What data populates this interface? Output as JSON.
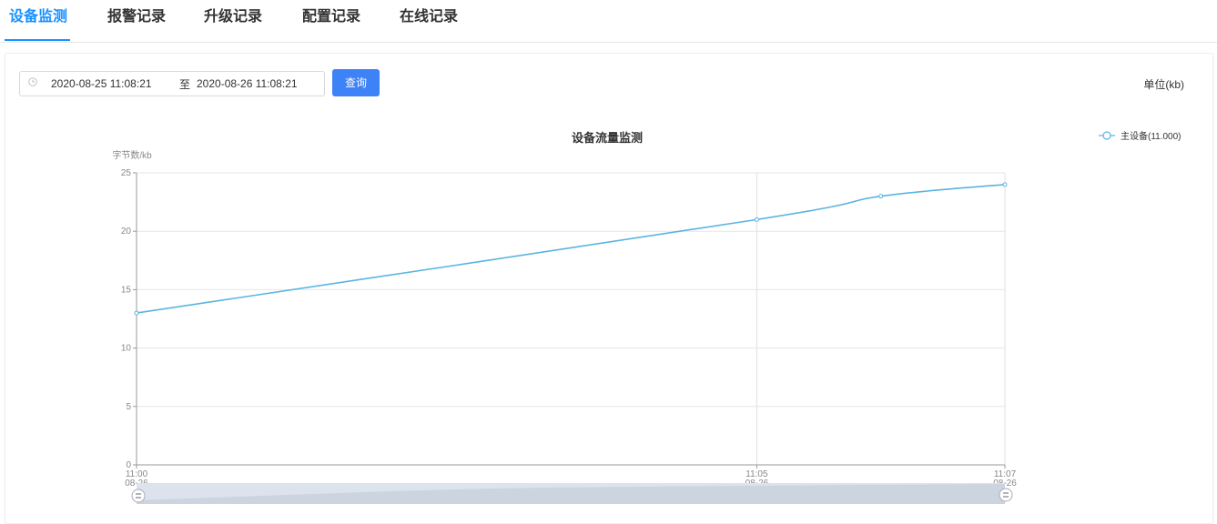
{
  "tabs": [
    {
      "label": "设备监测",
      "active": true
    },
    {
      "label": "报警记录",
      "active": false
    },
    {
      "label": "升级记录",
      "active": false
    },
    {
      "label": "配置记录",
      "active": false
    },
    {
      "label": "在线记录",
      "active": false
    }
  ],
  "filter": {
    "start": "2020-08-25 11:08:21",
    "separator": "至",
    "end": "2020-08-26 11:08:21",
    "query_label": "查询",
    "clock_icon": "clock-icon"
  },
  "unit_label": "单位(kb)",
  "colors": {
    "accent": "#1890ff",
    "button": "#3e82f7",
    "series": "#5ab4e0"
  },
  "chart_data": {
    "type": "line",
    "title": "设备流量监测",
    "ylabel": "字节数/kb",
    "ylim": [
      0,
      25
    ],
    "yticks": [
      "0",
      "5",
      "10",
      "15",
      "20",
      "25"
    ],
    "xlim": [
      "11:00",
      "11:07"
    ],
    "xticks": [
      {
        "time": "11:00",
        "date": "08-26"
      },
      {
        "time": "11:05",
        "date": "08-26"
      },
      {
        "time": "11:07",
        "date": "08-26"
      }
    ],
    "series": [
      {
        "name": "主设备(11.000)",
        "points": [
          {
            "x": "11:00",
            "y": 13
          },
          {
            "x": "11:05",
            "y": 21
          },
          {
            "x": "11:06",
            "y": 23
          },
          {
            "x": "11:07",
            "y": 24
          }
        ]
      }
    ],
    "legend_position": "top-right",
    "grid": true,
    "data_zoom": true
  }
}
